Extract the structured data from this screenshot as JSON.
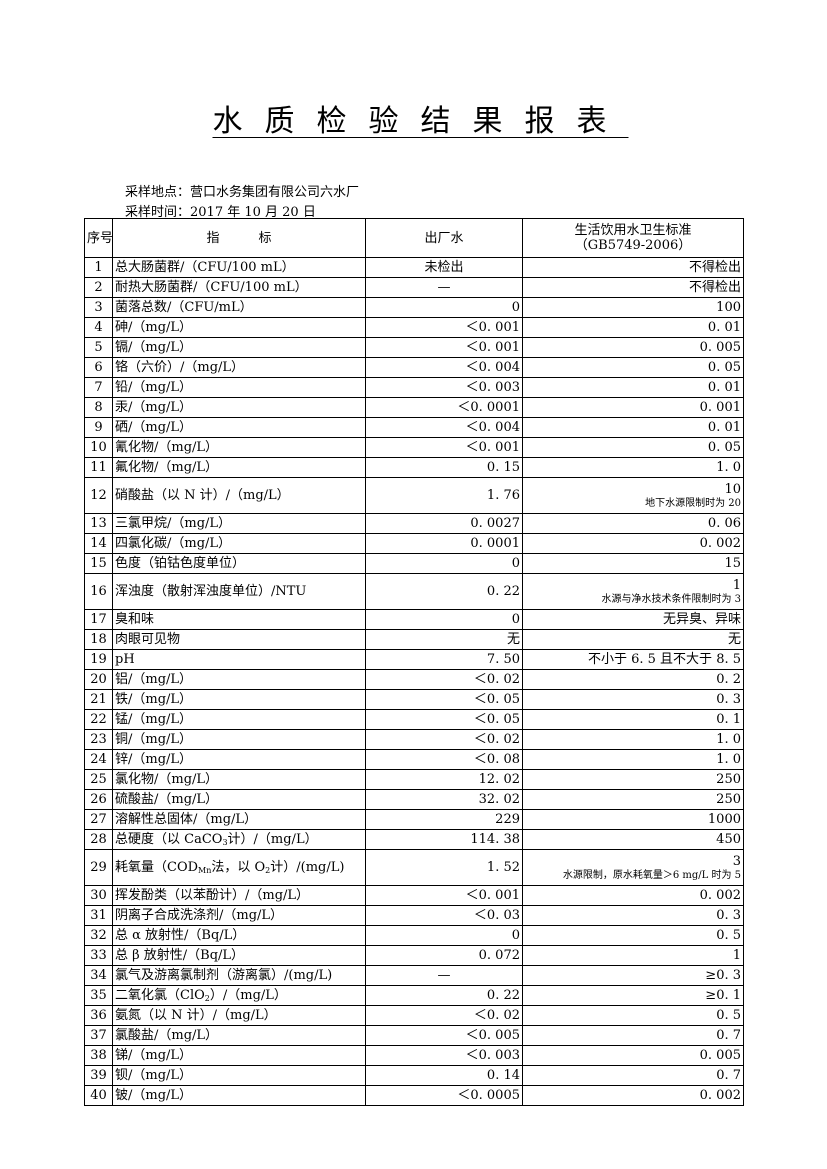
{
  "title": "水质检验结果报表",
  "sampling_location": "采样地点：营口水务集团有限公司六水厂",
  "sampling_time": "采样时间：2017 年 10 月 20 日",
  "headers": {
    "no": "序号",
    "indicator": "指　　　标",
    "effluent": "出厂水",
    "standard_line1": "生活饮用水卫生标准",
    "standard_line2": "（GB5749-2006）"
  },
  "rows": [
    {
      "no": "1",
      "name": [
        {
          "t": "总大肠菌群/（CFU/100 mL）"
        }
      ],
      "value": "未检出",
      "standard": "不得检出",
      "center": true
    },
    {
      "no": "2",
      "name": [
        {
          "t": "耐热大肠菌群/（CFU/100 mL）"
        }
      ],
      "value": "—",
      "standard": "不得检出",
      "center": true
    },
    {
      "no": "3",
      "name": [
        {
          "t": "菌落总数/（CFU/mL）"
        }
      ],
      "value": "0",
      "standard": "100"
    },
    {
      "no": "4",
      "name": [
        {
          "t": "砷/（mg/L）"
        }
      ],
      "value": "＜0. 001",
      "standard": "0. 01"
    },
    {
      "no": "5",
      "name": [
        {
          "t": "镉/（mg/L）"
        }
      ],
      "value": "＜0. 001",
      "standard": "0. 005"
    },
    {
      "no": "6",
      "name": [
        {
          "t": "铬（六价）/（mg/L）"
        }
      ],
      "value": "＜0. 004",
      "standard": "0. 05"
    },
    {
      "no": "7",
      "name": [
        {
          "t": "铅/（mg/L）"
        }
      ],
      "value": "＜0. 003",
      "standard": "0. 01"
    },
    {
      "no": "8",
      "name": [
        {
          "t": "汞/（mg/L）"
        }
      ],
      "value": "＜0. 0001",
      "standard": "0. 001"
    },
    {
      "no": "9",
      "name": [
        {
          "t": "硒/（mg/L）"
        }
      ],
      "value": "＜0. 004",
      "standard": "0. 01"
    },
    {
      "no": "10",
      "name": [
        {
          "t": "氰化物/（mg/L）"
        }
      ],
      "value": "＜0. 001",
      "standard": "0. 05"
    },
    {
      "no": "11",
      "name": [
        {
          "t": "氟化物/（mg/L）"
        }
      ],
      "value": "0. 15",
      "standard": "1. 0"
    },
    {
      "no": "12",
      "name": [
        {
          "t": "硝酸盐（以 N 计）/（mg/L）"
        }
      ],
      "value": "1. 76",
      "standard": "10",
      "note": "地下水源限制时为 20"
    },
    {
      "no": "13",
      "name": [
        {
          "t": "三氯甲烷/（mg/L）"
        }
      ],
      "value": "0. 0027",
      "standard": "0. 06"
    },
    {
      "no": "14",
      "name": [
        {
          "t": "四氯化碳/（mg/L）"
        }
      ],
      "value": "0. 0001",
      "standard": "0. 002"
    },
    {
      "no": "15",
      "name": [
        {
          "t": "色度（铂钴色度单位）"
        }
      ],
      "value": "0",
      "standard": "15"
    },
    {
      "no": "16",
      "name": [
        {
          "t": "浑浊度（散射浑浊度单位）/NTU"
        }
      ],
      "value": "0. 22",
      "standard": "1",
      "note": "水源与净水技术条件限制时为 3"
    },
    {
      "no": "17",
      "name": [
        {
          "t": "臭和味"
        }
      ],
      "value": "0",
      "standard": "无异臭、异味"
    },
    {
      "no": "18",
      "name": [
        {
          "t": "肉眼可见物"
        }
      ],
      "value": "无",
      "standard": "无"
    },
    {
      "no": "19",
      "name": [
        {
          "t": "pH"
        }
      ],
      "value": "7. 50",
      "standard": "不小于 6. 5 且不大于 8. 5"
    },
    {
      "no": "20",
      "name": [
        {
          "t": "铝/（mg/L）"
        }
      ],
      "value": "＜0. 02",
      "standard": "0. 2"
    },
    {
      "no": "21",
      "name": [
        {
          "t": "铁/（mg/L）"
        }
      ],
      "value": "＜0. 05",
      "standard": "0. 3"
    },
    {
      "no": "22",
      "name": [
        {
          "t": "锰/（mg/L）"
        }
      ],
      "value": "＜0. 05",
      "standard": "0. 1"
    },
    {
      "no": "23",
      "name": [
        {
          "t": "铜/（mg/L）"
        }
      ],
      "value": "＜0. 02",
      "standard": "1. 0"
    },
    {
      "no": "24",
      "name": [
        {
          "t": "锌/（mg/L）"
        }
      ],
      "value": "＜0. 08",
      "standard": "1. 0"
    },
    {
      "no": "25",
      "name": [
        {
          "t": "氯化物/（mg/L）"
        }
      ],
      "value": "12. 02",
      "standard": "250"
    },
    {
      "no": "26",
      "name": [
        {
          "t": "硫酸盐/（mg/L）"
        }
      ],
      "value": "32. 02",
      "standard": "250"
    },
    {
      "no": "27",
      "name": [
        {
          "t": "溶解性总固体/（mg/L）"
        }
      ],
      "value": "229",
      "standard": "1000"
    },
    {
      "no": "28",
      "name": [
        {
          "t": "总硬度（以 CaCO"
        },
        {
          "sub": "3"
        },
        {
          "t": "计）/（mg/L）"
        }
      ],
      "value": "114. 38",
      "standard": "450"
    },
    {
      "no": "29",
      "name": [
        {
          "t": "耗氧量（COD"
        },
        {
          "sub": "Mn"
        },
        {
          "t": "法，以 O"
        },
        {
          "sub": "2"
        },
        {
          "t": "计）/(mg/L)"
        }
      ],
      "value": "1. 52",
      "standard": "3",
      "note": "水源限制，原水耗氧量＞6 mg/L 时为 5"
    },
    {
      "no": "30",
      "name": [
        {
          "t": "挥发酚类（以苯酚计）/（mg/L）"
        }
      ],
      "value": "＜0. 001",
      "standard": "0. 002"
    },
    {
      "no": "31",
      "name": [
        {
          "t": "阴离子合成洗涤剂/（mg/L）"
        }
      ],
      "value": "＜0. 03",
      "standard": "0. 3"
    },
    {
      "no": "32",
      "name": [
        {
          "t": "总 α 放射性/（Bq/L）"
        }
      ],
      "value": "0",
      "standard": "0. 5"
    },
    {
      "no": "33",
      "name": [
        {
          "t": "总 β 放射性/（Bq/L）"
        }
      ],
      "value": "0. 072",
      "standard": "1"
    },
    {
      "no": "34",
      "name": [
        {
          "t": "氯气及游离氯制剂（游离氯）/(mg/L)"
        }
      ],
      "value": "—",
      "standard": "≥0. 3",
      "center": true
    },
    {
      "no": "35",
      "name": [
        {
          "t": "二氧化氯（ClO"
        },
        {
          "sub": "2"
        },
        {
          "t": "）/（mg/L）"
        }
      ],
      "value": "0. 22",
      "standard": "≥0. 1"
    },
    {
      "no": "36",
      "name": [
        {
          "t": "氨氮（以 N 计）/（mg/L）"
        }
      ],
      "value": "＜0. 02",
      "standard": "0. 5"
    },
    {
      "no": "37",
      "name": [
        {
          "t": "氯酸盐/（mg/L）"
        }
      ],
      "value": "＜0. 005",
      "standard": "0. 7"
    },
    {
      "no": "38",
      "name": [
        {
          "t": "锑/（mg/L）"
        }
      ],
      "value": "＜0. 003",
      "standard": "0. 005"
    },
    {
      "no": "39",
      "name": [
        {
          "t": "钡/（mg/L）"
        }
      ],
      "value": "0. 14",
      "standard": "0. 7"
    },
    {
      "no": "40",
      "name": [
        {
          "t": "铍/（mg/L）"
        }
      ],
      "value": "＜0. 0005",
      "standard": "0. 002"
    }
  ]
}
